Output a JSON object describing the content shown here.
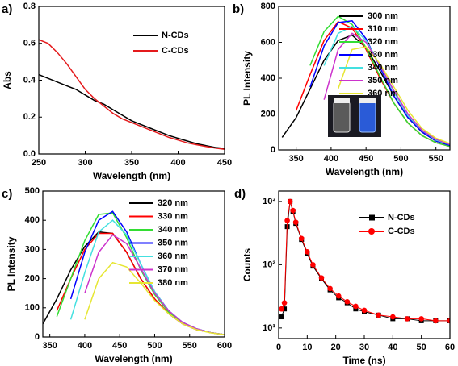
{
  "chart_data": [
    {
      "type": "line",
      "title": "a)",
      "xlabel": "Wavelength (nm)",
      "ylabel": "Abs",
      "x": [
        250,
        260,
        270,
        280,
        290,
        300,
        310,
        320,
        330,
        340,
        350,
        360,
        370,
        380,
        390,
        400,
        410,
        420,
        430,
        440,
        450
      ],
      "xlim": [
        250,
        450
      ],
      "xticks": [
        250,
        300,
        350,
        400,
        450
      ],
      "ylim": [
        0,
        0.8
      ],
      "yticks": [
        {
          "value": 0,
          "label": "0.0"
        },
        0.2,
        0.4,
        0.6,
        0.8
      ],
      "legend": "upper right",
      "series": [
        {
          "name": "N-CDs",
          "color": "#000000",
          "values": [
            0.43,
            0.41,
            0.39,
            0.37,
            0.35,
            0.32,
            0.29,
            0.27,
            0.24,
            0.21,
            0.18,
            0.16,
            0.14,
            0.12,
            0.1,
            0.085,
            0.07,
            0.055,
            0.045,
            0.035,
            0.03
          ]
        },
        {
          "name": "C-CDs",
          "color": "#e41a1c",
          "values": [
            0.62,
            0.6,
            0.55,
            0.49,
            0.42,
            0.35,
            0.3,
            0.26,
            0.22,
            0.19,
            0.17,
            0.15,
            0.13,
            0.11,
            0.09,
            0.075,
            0.06,
            0.05,
            0.04,
            0.032,
            0.025
          ]
        }
      ]
    },
    {
      "type": "line",
      "title": "b)",
      "xlabel": "Wavelength (nm)",
      "ylabel": "PL Intensity",
      "x": [
        330,
        350,
        370,
        390,
        410,
        430,
        450,
        470,
        490,
        510,
        530,
        550,
        570
      ],
      "xlim": [
        325,
        570
      ],
      "xticks": [
        350,
        400,
        450,
        500,
        550
      ],
      "ylim": [
        0,
        800
      ],
      "yticks": [
        0,
        200,
        400,
        600,
        800
      ],
      "legend": "upper right",
      "series": [
        {
          "name": "300 nm",
          "color": "#000000",
          "values": [
            70,
            180,
            340,
            500,
            610,
            640,
            570,
            440,
            300,
            180,
            100,
            50,
            25
          ]
        },
        {
          "name": "310 nm",
          "color": "#ff0000",
          "values": [
            null,
            220,
            420,
            610,
            715,
            680,
            560,
            400,
            260,
            150,
            80,
            40,
            20
          ]
        },
        {
          "name": "320 nm",
          "color": "#33dd33",
          "values": [
            null,
            null,
            470,
            660,
            745,
            700,
            570,
            410,
            260,
            150,
            80,
            40,
            20
          ]
        },
        {
          "name": "330 nm",
          "color": "#0000ff",
          "values": [
            null,
            null,
            350,
            580,
            710,
            720,
            620,
            460,
            300,
            180,
            100,
            50,
            25
          ]
        },
        {
          "name": "340 nm",
          "color": "#44e0e0",
          "values": [
            null,
            null,
            null,
            470,
            650,
            690,
            610,
            470,
            320,
            190,
            110,
            55,
            30
          ]
        },
        {
          "name": "350 nm",
          "color": "#cc33cc",
          "values": [
            null,
            null,
            null,
            280,
            560,
            650,
            600,
            470,
            330,
            200,
            110,
            60,
            30
          ]
        },
        {
          "name": "360 nm",
          "color": "#e6e633",
          "values": [
            null,
            null,
            null,
            null,
            340,
            560,
            575,
            480,
            350,
            220,
            120,
            65,
            35
          ]
        }
      ]
    },
    {
      "type": "line",
      "title": "c)",
      "xlabel": "Wavelength (nm)",
      "ylabel": "PL Intensity",
      "x": [
        340,
        360,
        380,
        400,
        420,
        440,
        460,
        480,
        500,
        520,
        540,
        560,
        580,
        600
      ],
      "xlim": [
        340,
        600
      ],
      "xticks": [
        350,
        400,
        450,
        500,
        550,
        600
      ],
      "ylim": [
        0,
        500
      ],
      "yticks": [
        0,
        100,
        200,
        300,
        400,
        500
      ],
      "legend": "upper right",
      "series": [
        {
          "name": "320 nm",
          "color": "#000000",
          "values": [
            45,
            130,
            230,
            310,
            360,
            355,
            290,
            200,
            130,
            80,
            45,
            25,
            15,
            8
          ]
        },
        {
          "name": "330 nm",
          "color": "#ff0000",
          "values": [
            null,
            90,
            200,
            300,
            355,
            355,
            290,
            200,
            130,
            80,
            45,
            25,
            15,
            8
          ]
        },
        {
          "name": "340 nm",
          "color": "#33dd33",
          "values": [
            null,
            70,
            200,
            330,
            420,
            425,
            340,
            230,
            145,
            85,
            50,
            28,
            15,
            8
          ]
        },
        {
          "name": "350 nm",
          "color": "#0000ff",
          "values": [
            null,
            null,
            130,
            290,
            400,
            430,
            360,
            250,
            155,
            90,
            50,
            28,
            15,
            8
          ]
        },
        {
          "name": "360 nm",
          "color": "#44e0e0",
          "values": [
            null,
            null,
            60,
            220,
            360,
            400,
            350,
            250,
            155,
            90,
            50,
            28,
            15,
            8
          ]
        },
        {
          "name": "370 nm",
          "color": "#cc33cc",
          "values": [
            null,
            null,
            null,
            150,
            290,
            350,
            320,
            235,
            150,
            90,
            50,
            28,
            15,
            8
          ]
        },
        {
          "name": "380 nm",
          "color": "#e6e633",
          "values": [
            null,
            null,
            null,
            60,
            200,
            255,
            240,
            185,
            125,
            80,
            45,
            25,
            14,
            8
          ]
        }
      ]
    },
    {
      "type": "scatter",
      "title": "d)",
      "xlabel": "Time (ns)",
      "ylabel": "Counts",
      "x": [
        1,
        2,
        3,
        4,
        5,
        6,
        8,
        10,
        12,
        15,
        18,
        21,
        24,
        27,
        30,
        35,
        40,
        45,
        50,
        55,
        60
      ],
      "xlim": [
        0,
        60
      ],
      "xticks": [
        0,
        10,
        20,
        30,
        40,
        50,
        60
      ],
      "ylim": [
        6.8,
        1460
      ],
      "log": true,
      "yticks": [
        {
          "value": 10,
          "label": "10¹"
        },
        {
          "value": 100,
          "label": "10²"
        },
        {
          "value": 1000,
          "label": "10³"
        }
      ],
      "legend": "upper right",
      "series": [
        {
          "name": "N-CDs",
          "color": "#000000",
          "marker": "square",
          "values": [
            15,
            20,
            400,
            1000,
            700,
            450,
            250,
            150,
            95,
            60,
            40,
            30,
            25,
            20,
            18,
            16,
            14,
            14,
            13,
            13,
            13
          ]
        },
        {
          "name": "C-CDs",
          "color": "#ff0000",
          "marker": "circle",
          "values": [
            20,
            25,
            500,
            1000,
            720,
            470,
            260,
            160,
            100,
            62,
            42,
            32,
            26,
            22,
            19,
            16,
            15,
            14,
            14,
            13,
            13
          ]
        }
      ]
    }
  ]
}
